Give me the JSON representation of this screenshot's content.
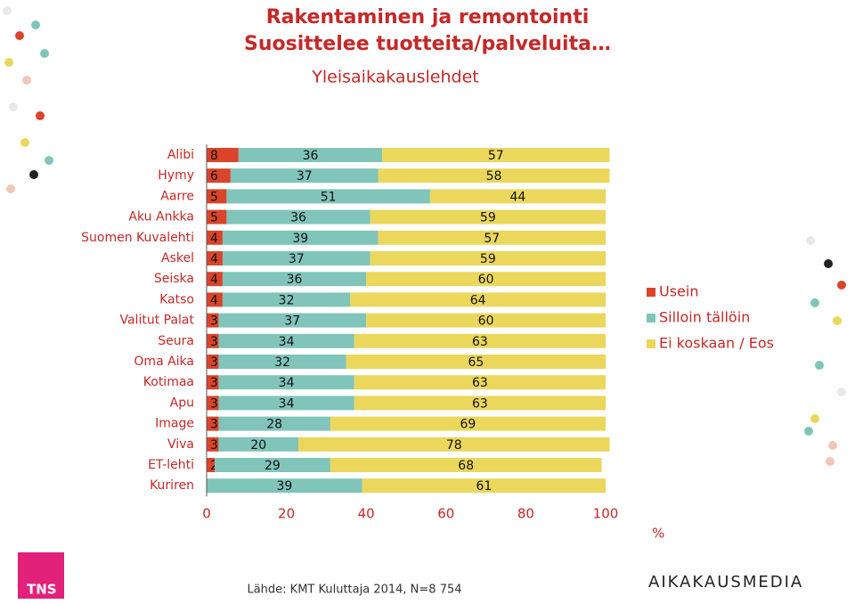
{
  "chart_data": {
    "type": "stacked-bar-horizontal",
    "title": "Rakentaminen ja remontointi",
    "subtitle": "Suosittelee tuotteita/palveluita…",
    "subtitle2": "Yleisaikakauslehdet",
    "x_unit": "%",
    "categories": [
      "Alibi",
      "Hymy",
      "Aarre",
      "Aku Ankka",
      "Suomen Kuvalehti",
      "Askel",
      "Seiska",
      "Katso",
      "Valitut Palat",
      "Seura",
      "Oma Aika",
      "Kotimaa",
      "Apu",
      "Image",
      "Viva",
      "ET-lehti",
      "Kuriren"
    ],
    "series": [
      {
        "name": "Usein",
        "color": "#d9442b",
        "values": [
          8,
          6,
          5,
          5,
          4,
          4,
          4,
          4,
          3,
          3,
          3,
          3,
          3,
          3,
          3,
          2,
          0
        ]
      },
      {
        "name": "Silloin tällöin",
        "color": "#80c4ba",
        "values": [
          36,
          37,
          51,
          36,
          39,
          37,
          36,
          32,
          37,
          34,
          32,
          34,
          34,
          28,
          20,
          29,
          39
        ]
      },
      {
        "name": "Ei koskaan / Eos",
        "color": "#ead75c",
        "values": [
          57,
          58,
          44,
          59,
          57,
          59,
          60,
          64,
          60,
          63,
          65,
          63,
          63,
          69,
          78,
          68,
          61
        ]
      }
    ],
    "xlim": [
      0,
      100
    ],
    "xticks": [
      0,
      20,
      40,
      60,
      80,
      100
    ],
    "legend": "right",
    "source": "Lähde: KMT Kuluttaja 2014, N=8 754",
    "logo_left": "TNS",
    "logo_right": "AIKAKAUSMEDIA"
  }
}
